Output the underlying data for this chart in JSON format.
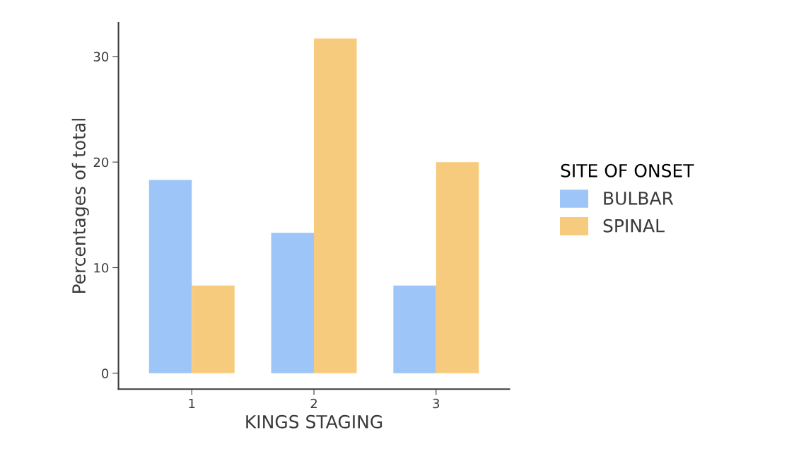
{
  "chart_data": {
    "type": "bar",
    "xlabel": "KINGS STAGING",
    "ylabel": "Percentages of total",
    "legend_title": "SITE OF ONSET",
    "categories": [
      "1",
      "2",
      "3"
    ],
    "series": [
      {
        "name": "BULBAR",
        "color": "#9dc5f8",
        "values": [
          18.3,
          13.3,
          8.3
        ]
      },
      {
        "name": "SPINAL",
        "color": "#f7cb7d",
        "values": [
          8.3,
          31.7,
          20.0
        ]
      }
    ],
    "ylim": [
      -1.5,
      33.2
    ],
    "yticks": [
      0,
      10,
      20,
      30
    ],
    "grid": false,
    "legend": "right"
  }
}
